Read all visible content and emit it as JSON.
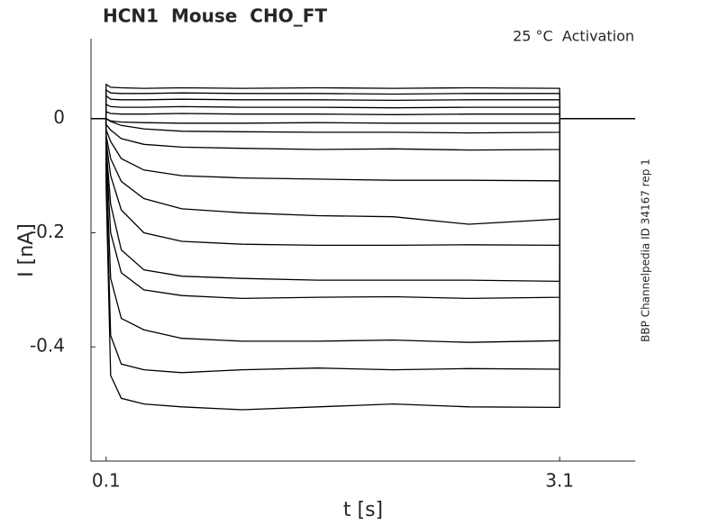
{
  "chart_data": {
    "type": "line",
    "title": "HCN1  Mouse  CHO_FT",
    "annotation": "25 °C  Activation",
    "side_label": "BBP Channelpedia ID 34167 rep 1",
    "xlabel": "t [s]",
    "ylabel": "I [nA]",
    "xlim": [
      0,
      3.6
    ],
    "ylim": [
      -0.6,
      0.14
    ],
    "xticks": [
      0.1,
      3.1
    ],
    "yticks": [
      0,
      -0.2,
      -0.4
    ],
    "grid": false,
    "color": "#000000",
    "x": [
      0,
      0.099,
      0.1,
      0.13,
      0.2,
      0.35,
      0.6,
      1.0,
      1.5,
      2.0,
      2.5,
      3.1,
      3.101,
      3.6
    ],
    "series": [
      {
        "values": [
          0,
          0,
          0.06,
          0.055,
          0.054,
          0.053,
          0.054,
          0.053,
          0.054,
          0.053,
          0.054,
          0.053,
          0,
          0
        ]
      },
      {
        "values": [
          0,
          0,
          0.05,
          0.045,
          0.044,
          0.044,
          0.045,
          0.044,
          0.044,
          0.043,
          0.044,
          0.044,
          0,
          0
        ]
      },
      {
        "values": [
          0,
          0,
          0.04,
          0.034,
          0.033,
          0.033,
          0.034,
          0.033,
          0.033,
          0.032,
          0.033,
          0.033,
          0,
          0
        ]
      },
      {
        "values": [
          0,
          0,
          0.025,
          0.021,
          0.02,
          0.02,
          0.021,
          0.02,
          0.02,
          0.019,
          0.02,
          0.02,
          0,
          0
        ]
      },
      {
        "values": [
          0,
          0,
          0.012,
          0.009,
          0.008,
          0.008,
          0.009,
          0.008,
          0.008,
          0.007,
          0.008,
          0.008,
          0,
          0
        ]
      },
      {
        "values": [
          0,
          0,
          0,
          -0.004,
          -0.006,
          -0.007,
          -0.008,
          -0.008,
          -0.007,
          -0.008,
          -0.008,
          -0.008,
          0,
          0
        ]
      },
      {
        "values": [
          0,
          0,
          0,
          -0.005,
          -0.012,
          -0.018,
          -0.022,
          -0.023,
          -0.024,
          -0.024,
          -0.025,
          -0.024,
          0,
          0
        ]
      },
      {
        "values": [
          0,
          0,
          -0.01,
          -0.02,
          -0.035,
          -0.045,
          -0.05,
          -0.052,
          -0.054,
          -0.053,
          -0.055,
          -0.054,
          0,
          0
        ]
      },
      {
        "values": [
          0,
          0,
          -0.02,
          -0.04,
          -0.07,
          -0.09,
          -0.1,
          -0.104,
          -0.106,
          -0.108,
          -0.108,
          -0.109,
          0,
          0
        ]
      },
      {
        "values": [
          0,
          0,
          -0.03,
          -0.07,
          -0.11,
          -0.14,
          -0.158,
          -0.165,
          -0.17,
          -0.172,
          -0.185,
          -0.176,
          0,
          0
        ]
      },
      {
        "values": [
          0,
          0,
          -0.04,
          -0.1,
          -0.16,
          -0.2,
          -0.215,
          -0.22,
          -0.222,
          -0.222,
          -0.221,
          -0.222,
          0,
          0
        ]
      },
      {
        "values": [
          0,
          0,
          -0.05,
          -0.15,
          -0.23,
          -0.265,
          -0.276,
          -0.28,
          -0.283,
          -0.283,
          -0.283,
          -0.285,
          0,
          0
        ]
      },
      {
        "values": [
          0,
          0,
          -0.06,
          -0.2,
          -0.27,
          -0.3,
          -0.31,
          -0.315,
          -0.313,
          -0.312,
          -0.315,
          -0.313,
          0,
          0
        ]
      },
      {
        "values": [
          0,
          0,
          -0.08,
          -0.28,
          -0.35,
          -0.37,
          -0.385,
          -0.39,
          -0.39,
          -0.388,
          -0.392,
          -0.389,
          0,
          0
        ]
      },
      {
        "values": [
          0,
          0,
          -0.1,
          -0.38,
          -0.43,
          -0.44,
          -0.445,
          -0.44,
          -0.437,
          -0.44,
          -0.438,
          -0.439,
          0,
          0
        ]
      },
      {
        "values": [
          0,
          0,
          -0.12,
          -0.45,
          -0.49,
          -0.5,
          -0.505,
          -0.51,
          -0.505,
          -0.5,
          -0.505,
          -0.506,
          0,
          0
        ]
      }
    ]
  }
}
